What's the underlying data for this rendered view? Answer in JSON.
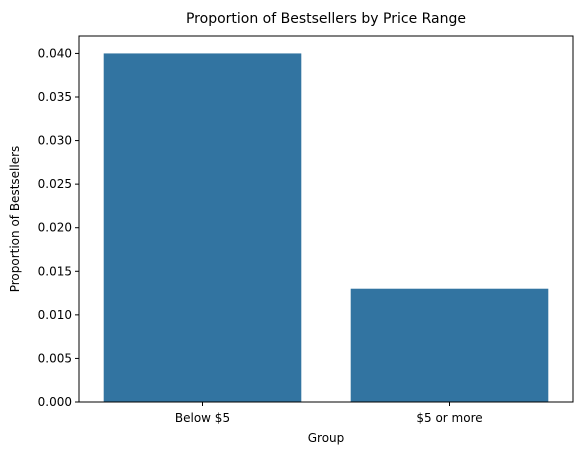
{
  "chart_data": {
    "type": "bar",
    "title": "Proportion of Bestsellers by Price Range",
    "xlabel": "Group",
    "ylabel": "Proportion of Bestsellers",
    "categories": [
      "Below $5",
      "$5 or more"
    ],
    "values": [
      0.04,
      0.013
    ],
    "ylim": [
      0,
      0.042
    ],
    "yticks": [
      0.0,
      0.005,
      0.01,
      0.015,
      0.02,
      0.025,
      0.03,
      0.035,
      0.04
    ],
    "ytick_labels": [
      "0.000",
      "0.005",
      "0.010",
      "0.015",
      "0.020",
      "0.025",
      "0.030",
      "0.035",
      "0.040"
    ],
    "grid": false,
    "bar_color": "#3274a1"
  }
}
